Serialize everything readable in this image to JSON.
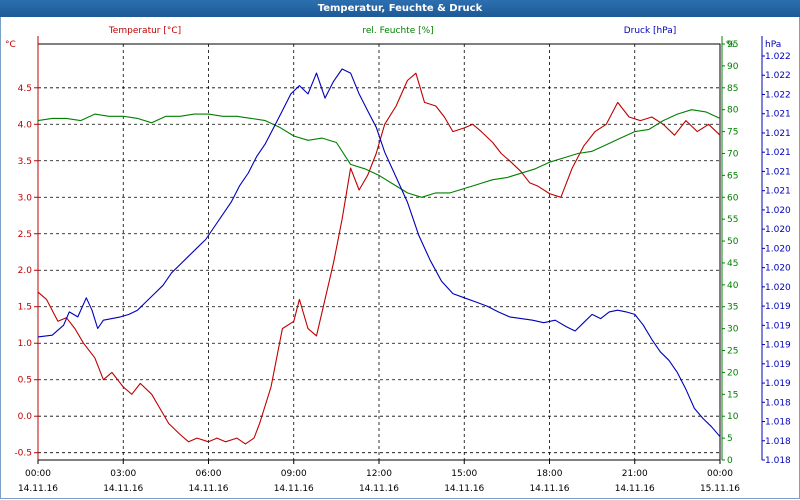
{
  "window": {
    "title": "Temperatur, Feuchte & Druck"
  },
  "colors": {
    "temperature": "#c00000",
    "humidity": "#008000",
    "pressure": "#0000bb",
    "titlebar": "#1f5f9f"
  },
  "chart_data": {
    "type": "line",
    "title": "Temperatur, Feuchte & Druck",
    "grid": true,
    "x_ticks": [
      {
        "h": 0,
        "time": "00:00",
        "date": "14.11.16"
      },
      {
        "h": 3,
        "time": "03:00",
        "date": "14.11.16"
      },
      {
        "h": 6,
        "time": "06:00",
        "date": "14.11.16"
      },
      {
        "h": 9,
        "time": "09:00",
        "date": "14.11.16"
      },
      {
        "h": 12,
        "time": "12:00",
        "date": "14.11.16"
      },
      {
        "h": 15,
        "time": "15:00",
        "date": "14.11.16"
      },
      {
        "h": 18,
        "time": "18:00",
        "date": "14.11.16"
      },
      {
        "h": 21,
        "time": "21:00",
        "date": "14.11.16"
      },
      {
        "h": 24,
        "time": "00:00",
        "date": "15.11.16"
      }
    ],
    "axes": {
      "temperature": {
        "unit": "°C",
        "ylim": [
          -0.6,
          5.1
        ],
        "ticks": [
          "-0.5",
          "0.0",
          "0.5",
          "1.0",
          "1.5",
          "2.0",
          "2.5",
          "3.0",
          "3.5",
          "4.0",
          "4.5"
        ],
        "tick_values": [
          -0.5,
          0,
          0.5,
          1,
          1.5,
          2,
          2.5,
          3,
          3.5,
          4,
          4.5
        ]
      },
      "humidity": {
        "unit": "%",
        "ylim": [
          0,
          95
        ],
        "ticks": [
          "0",
          "5",
          "10",
          "15",
          "20",
          "25",
          "30",
          "35",
          "40",
          "45",
          "50",
          "55",
          "60",
          "65",
          "70",
          "75",
          "80",
          "85",
          "90",
          "95"
        ],
        "tick_values": [
          0,
          5,
          10,
          15,
          20,
          25,
          30,
          35,
          40,
          45,
          50,
          55,
          60,
          65,
          70,
          75,
          80,
          85,
          90,
          95
        ]
      },
      "pressure": {
        "unit": "hPa",
        "ylim": [
          1.0175,
          1.0225
        ],
        "ticks": [
          "1.022",
          "1.022",
          "1.022",
          "1.021",
          "1.021",
          "1.021",
          "1.021",
          "1.021",
          "1.020",
          "1.020",
          "1.020",
          "1.020",
          "1.020",
          "1.019",
          "1.019",
          "1.019",
          "1.019",
          "1.019",
          "1.018",
          "1.018",
          "1.018",
          "1.018"
        ]
      }
    },
    "series": [
      {
        "name": "Temperatur [°C]",
        "axis": "temperature",
        "color": "#c00000",
        "x": [
          0,
          0.3,
          0.7,
          1,
          1.3,
          1.6,
          2,
          2.3,
          2.6,
          3,
          3.3,
          3.6,
          4,
          4.3,
          4.6,
          5,
          5.3,
          5.6,
          6,
          6.3,
          6.6,
          7,
          7.3,
          7.6,
          7.8,
          8.2,
          8.6,
          9,
          9.2,
          9.5,
          9.8,
          10.1,
          10.4,
          10.7,
          11,
          11.3,
          11.6,
          11.9,
          12.2,
          12.6,
          13,
          13.3,
          13.6,
          14,
          14.3,
          14.6,
          15,
          15.3,
          15.6,
          16,
          16.3,
          16.6,
          17,
          17.3,
          17.6,
          18,
          18.4,
          18.8,
          19.2,
          19.6,
          20,
          20.4,
          20.8,
          21.2,
          21.6,
          22,
          22.4,
          22.8,
          23.2,
          23.6,
          24
        ],
        "values": [
          1.7,
          1.6,
          1.3,
          1.35,
          1.2,
          1.0,
          0.8,
          0.5,
          0.6,
          0.4,
          0.3,
          0.45,
          0.3,
          0.1,
          -0.1,
          -0.25,
          -0.35,
          -0.3,
          -0.35,
          -0.3,
          -0.35,
          -0.3,
          -0.38,
          -0.3,
          -0.1,
          0.4,
          1.2,
          1.3,
          1.6,
          1.2,
          1.1,
          1.6,
          2.1,
          2.7,
          3.4,
          3.1,
          3.3,
          3.6,
          4.0,
          4.25,
          4.6,
          4.7,
          4.3,
          4.25,
          4.1,
          3.9,
          3.95,
          4.0,
          3.9,
          3.75,
          3.6,
          3.5,
          3.35,
          3.2,
          3.15,
          3.05,
          3.0,
          3.4,
          3.7,
          3.9,
          4.0,
          4.3,
          4.1,
          4.05,
          4.1,
          4.0,
          3.85,
          4.05,
          3.9,
          4.0,
          3.85
        ]
      },
      {
        "name": "rel. Feuchte [%]",
        "axis": "humidity",
        "color": "#008000",
        "x": [
          0,
          0.5,
          1,
          1.5,
          2,
          2.5,
          3,
          3.5,
          4,
          4.5,
          5,
          5.5,
          6,
          6.5,
          7,
          7.5,
          8,
          8.5,
          9,
          9.5,
          10,
          10.5,
          11,
          11.5,
          12,
          12.5,
          13,
          13.5,
          14,
          14.5,
          15,
          15.5,
          16,
          16.5,
          17,
          17.5,
          18,
          18.5,
          19,
          19.5,
          20,
          20.5,
          21,
          21.5,
          22,
          22.5,
          23,
          23.5,
          24
        ],
        "values": [
          77.5,
          78,
          78,
          77.5,
          79,
          78.5,
          78.5,
          78,
          77,
          78.5,
          78.5,
          79,
          79,
          78.5,
          78.5,
          78,
          77.5,
          76,
          74,
          73,
          73.5,
          72.5,
          67.5,
          66.5,
          65,
          63,
          61,
          60,
          61,
          61,
          62,
          63,
          64,
          64.5,
          65.5,
          66.5,
          68,
          69,
          70,
          70.5,
          72,
          73.5,
          75,
          75.5,
          77.5,
          79,
          80,
          79.5,
          78
        ]
      },
      {
        "name": "Druck [hPa]",
        "axis": "pressure",
        "color": "#0000bb",
        "x": [
          0,
          0.5,
          0.9,
          1.1,
          1.4,
          1.7,
          1.9,
          2.1,
          2.3,
          2.6,
          2.9,
          3.2,
          3.5,
          3.8,
          4.1,
          4.4,
          4.7,
          5,
          5.3,
          5.6,
          5.9,
          6.2,
          6.5,
          6.8,
          7.1,
          7.4,
          7.7,
          8,
          8.3,
          8.6,
          8.9,
          9.2,
          9.5,
          9.8,
          10.1,
          10.4,
          10.7,
          11,
          11.3,
          11.6,
          11.9,
          12.2,
          12.6,
          13,
          13.4,
          13.8,
          14.2,
          14.6,
          15,
          15.4,
          15.8,
          16.2,
          16.6,
          17,
          17.4,
          17.8,
          18.2,
          18.6,
          18.9,
          19.2,
          19.5,
          19.8,
          20.1,
          20.4,
          20.7,
          21,
          21.3,
          21.6,
          21.9,
          22.2,
          22.5,
          22.8,
          23.1,
          23.4,
          23.7,
          24
        ],
        "values": [
          1.01898,
          1.019,
          1.01912,
          1.01928,
          1.01922,
          1.01945,
          1.0193,
          1.01908,
          1.01918,
          1.0192,
          1.01922,
          1.01925,
          1.0193,
          1.0194,
          1.0195,
          1.0196,
          1.01975,
          1.01985,
          1.01995,
          1.02005,
          1.02015,
          1.0203,
          1.02045,
          1.0206,
          1.0208,
          1.02095,
          1.02115,
          1.0213,
          1.0215,
          1.0217,
          1.0219,
          1.022,
          1.0219,
          1.02215,
          1.02185,
          1.02205,
          1.0222,
          1.02215,
          1.0219,
          1.0217,
          1.0215,
          1.0212,
          1.0209,
          1.0206,
          1.0202,
          1.0199,
          1.01965,
          1.0195,
          1.01945,
          1.0194,
          1.01935,
          1.01928,
          1.01922,
          1.0192,
          1.01918,
          1.01915,
          1.01918,
          1.0191,
          1.01905,
          1.01915,
          1.01925,
          1.0192,
          1.01928,
          1.0193,
          1.01928,
          1.01925,
          1.01912,
          1.01895,
          1.0188,
          1.0187,
          1.01855,
          1.01835,
          1.01812,
          1.018,
          1.0179,
          1.01778
        ]
      }
    ]
  }
}
